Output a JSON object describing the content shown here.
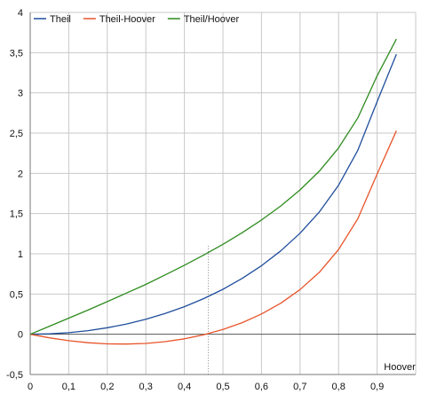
{
  "chart_data": {
    "type": "line",
    "title": "",
    "xlabel": "Hoover",
    "ylabel": "",
    "xlim": [
      0,
      1
    ],
    "ylim": [
      -0.5,
      4
    ],
    "x_ticks": [
      0,
      0.1,
      0.2,
      0.3,
      0.4,
      0.5,
      0.6,
      0.7,
      0.8,
      0.9
    ],
    "x_tick_labels": [
      "0",
      "0,1",
      "0,2",
      "0,3",
      "0,4",
      "0,5",
      "0,6",
      "0,7",
      "0,8",
      "0,9"
    ],
    "y_ticks": [
      -0.5,
      0,
      0.5,
      1,
      1.5,
      2,
      2.5,
      3,
      3.5,
      4
    ],
    "y_tick_labels": [
      "-0,5",
      "0",
      "0,5",
      "1",
      "1,5",
      "2",
      "2,5",
      "3",
      "3,5",
      "4"
    ],
    "grid": true,
    "legend_position": "top-left",
    "reference_line_x": 0.462,
    "series": [
      {
        "name": "Theil",
        "color": "#1f4e9c",
        "x": [
          0,
          0.05,
          0.1,
          0.15,
          0.2,
          0.25,
          0.3,
          0.35,
          0.4,
          0.45,
          0.5,
          0.55,
          0.6,
          0.65,
          0.7,
          0.75,
          0.8,
          0.85,
          0.9,
          0.95
        ],
        "values": [
          0,
          0.005,
          0.02,
          0.045,
          0.081,
          0.128,
          0.186,
          0.258,
          0.343,
          0.443,
          0.559,
          0.694,
          0.852,
          1.036,
          1.256,
          1.52,
          1.853,
          2.287,
          2.892,
          3.48
        ]
      },
      {
        "name": "Theil-Hoover",
        "color": "#e8542a",
        "x": [
          0,
          0.05,
          0.1,
          0.15,
          0.2,
          0.25,
          0.3,
          0.35,
          0.4,
          0.45,
          0.5,
          0.55,
          0.6,
          0.65,
          0.7,
          0.75,
          0.8,
          0.85,
          0.9,
          0.95
        ],
        "values": [
          0,
          -0.045,
          -0.08,
          -0.105,
          -0.119,
          -0.122,
          -0.114,
          -0.092,
          -0.057,
          -0.007,
          0.059,
          0.144,
          0.252,
          0.386,
          0.556,
          0.77,
          1.053,
          1.437,
          1.992,
          2.53
        ]
      },
      {
        "name": "Theil/Hoover",
        "color": "#2e8b1f",
        "x": [
          0,
          0.05,
          0.1,
          0.15,
          0.2,
          0.25,
          0.3,
          0.35,
          0.4,
          0.45,
          0.5,
          0.55,
          0.6,
          0.65,
          0.7,
          0.75,
          0.8,
          0.85,
          0.9,
          0.95
        ],
        "values": [
          0,
          0.1,
          0.2,
          0.301,
          0.405,
          0.512,
          0.62,
          0.737,
          0.858,
          0.985,
          1.118,
          1.262,
          1.42,
          1.594,
          1.794,
          2.027,
          2.316,
          2.69,
          3.213,
          3.67
        ]
      }
    ]
  }
}
